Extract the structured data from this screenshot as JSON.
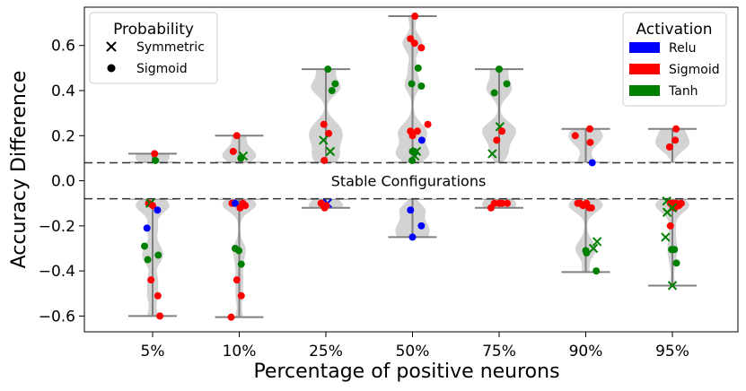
{
  "chart_data": {
    "type": "scatter",
    "title": "",
    "xlabel": "Percentage of positive neurons",
    "ylabel": "Accuracy Difference",
    "categories": [
      "5%",
      "10%",
      "25%",
      "50%",
      "75%",
      "90%",
      "95%"
    ],
    "ylim": [
      -0.67,
      0.77
    ],
    "yticks": [
      -0.6,
      -0.4,
      -0.2,
      0.0,
      0.2,
      0.4,
      0.6
    ],
    "ytick_labels": [
      "−0.6",
      "−0.4",
      "−0.2",
      "0.0",
      "0.2",
      "0.4",
      "0.6"
    ],
    "stable_band": {
      "lower": -0.08,
      "upper": 0.08,
      "label": "Stable Configurations"
    },
    "colors": {
      "Relu": "#0000ff",
      "Sigmoid": "#ff0000",
      "Tanh": "#008000",
      "whisker": "#808080",
      "violin": "#c8c8c8",
      "band_line": "#333333"
    },
    "legend_probability": {
      "title": "Probability",
      "entries": [
        {
          "marker": "x",
          "label": "Symmetric"
        },
        {
          "marker": "o",
          "label": "Sigmoid"
        }
      ]
    },
    "legend_activation": {
      "title": "Activation",
      "entries": [
        {
          "name": "Relu"
        },
        {
          "name": "Sigmoid"
        },
        {
          "name": "Tanh"
        }
      ]
    },
    "groups": [
      {
        "category": "5%",
        "pos_range": [
          0.08,
          0.12
        ],
        "neg_range": [
          -0.6,
          -0.08
        ],
        "points": [
          {
            "dx": 0.05,
            "y": 0.12,
            "act": "Sigmoid",
            "marker": "o"
          },
          {
            "dx": 0.07,
            "y": 0.09,
            "act": "Tanh",
            "marker": "o"
          },
          {
            "dx": -0.1,
            "y": -0.1,
            "act": "Sigmoid",
            "marker": "o"
          },
          {
            "dx": -0.06,
            "y": -0.1,
            "act": "Tanh",
            "marker": "x"
          },
          {
            "dx": 0.0,
            "y": -0.11,
            "act": "Sigmoid",
            "marker": "o"
          },
          {
            "dx": 0.12,
            "y": -0.13,
            "act": "Relu",
            "marker": "o"
          },
          {
            "dx": -0.14,
            "y": -0.21,
            "act": "Relu",
            "marker": "o"
          },
          {
            "dx": -0.2,
            "y": -0.29,
            "act": "Tanh",
            "marker": "o"
          },
          {
            "dx": -0.12,
            "y": -0.35,
            "act": "Tanh",
            "marker": "o"
          },
          {
            "dx": 0.14,
            "y": -0.33,
            "act": "Tanh",
            "marker": "o"
          },
          {
            "dx": -0.04,
            "y": -0.44,
            "act": "Sigmoid",
            "marker": "o"
          },
          {
            "dx": 0.13,
            "y": -0.51,
            "act": "Sigmoid",
            "marker": "o"
          },
          {
            "dx": 0.18,
            "y": -0.6,
            "act": "Sigmoid",
            "marker": "o"
          }
        ]
      },
      {
        "category": "10%",
        "pos_range": [
          0.08,
          0.2
        ],
        "neg_range": [
          -0.605,
          -0.08
        ],
        "points": [
          {
            "dx": -0.06,
            "y": 0.2,
            "act": "Sigmoid",
            "marker": "o"
          },
          {
            "dx": -0.15,
            "y": 0.13,
            "act": "Sigmoid",
            "marker": "o"
          },
          {
            "dx": 0.1,
            "y": 0.11,
            "act": "Tanh",
            "marker": "x"
          },
          {
            "dx": 0.04,
            "y": 0.1,
            "act": "Tanh",
            "marker": "o"
          },
          {
            "dx": -0.18,
            "y": -0.1,
            "act": "Sigmoid",
            "marker": "o"
          },
          {
            "dx": -0.12,
            "y": -0.1,
            "act": "Sigmoid",
            "marker": "o"
          },
          {
            "dx": -0.1,
            "y": -0.1,
            "act": "Relu",
            "marker": "o"
          },
          {
            "dx": 0.09,
            "y": -0.1,
            "act": "Sigmoid",
            "marker": "o"
          },
          {
            "dx": 0.15,
            "y": -0.11,
            "act": "Sigmoid",
            "marker": "o"
          },
          {
            "dx": 0.02,
            "y": -0.12,
            "act": "Sigmoid",
            "marker": "o"
          },
          {
            "dx": -0.1,
            "y": -0.3,
            "act": "Tanh",
            "marker": "o"
          },
          {
            "dx": -0.01,
            "y": -0.31,
            "act": "Tanh",
            "marker": "o"
          },
          {
            "dx": 0.05,
            "y": -0.37,
            "act": "Tanh",
            "marker": "o"
          },
          {
            "dx": -0.06,
            "y": -0.44,
            "act": "Sigmoid",
            "marker": "o"
          },
          {
            "dx": 0.05,
            "y": -0.51,
            "act": "Sigmoid",
            "marker": "o"
          },
          {
            "dx": -0.2,
            "y": -0.605,
            "act": "Sigmoid",
            "marker": "o"
          }
        ]
      },
      {
        "category": "25%",
        "pos_range": [
          0.08,
          0.495
        ],
        "neg_range": [
          -0.12,
          -0.08
        ],
        "points": [
          {
            "dx": 0.05,
            "y": 0.495,
            "act": "Tanh",
            "marker": "o"
          },
          {
            "dx": 0.23,
            "y": 0.43,
            "act": "Tanh",
            "marker": "o"
          },
          {
            "dx": 0.15,
            "y": 0.4,
            "act": "Tanh",
            "marker": "o"
          },
          {
            "dx": -0.05,
            "y": 0.25,
            "act": "Sigmoid",
            "marker": "o"
          },
          {
            "dx": 0.07,
            "y": 0.21,
            "act": "Sigmoid",
            "marker": "o"
          },
          {
            "dx": -0.06,
            "y": 0.18,
            "act": "Tanh",
            "marker": "x"
          },
          {
            "dx": 0.11,
            "y": 0.13,
            "act": "Tanh",
            "marker": "x"
          },
          {
            "dx": -0.04,
            "y": 0.09,
            "act": "Sigmoid",
            "marker": "o"
          },
          {
            "dx": 0.04,
            "y": -0.1,
            "act": "Relu",
            "marker": "x"
          },
          {
            "dx": -0.12,
            "y": -0.1,
            "act": "Sigmoid",
            "marker": "o"
          },
          {
            "dx": -0.06,
            "y": -0.11,
            "act": "Sigmoid",
            "marker": "o"
          },
          {
            "dx": 0.01,
            "y": -0.11,
            "act": "Sigmoid",
            "marker": "o"
          },
          {
            "dx": -0.03,
            "y": -0.12,
            "act": "Sigmoid",
            "marker": "o"
          }
        ]
      },
      {
        "category": "50%",
        "pos_range": [
          0.08,
          0.73
        ],
        "neg_range": [
          -0.25,
          -0.08
        ],
        "points": [
          {
            "dx": 0.06,
            "y": 0.73,
            "act": "Sigmoid",
            "marker": "o"
          },
          {
            "dx": -0.05,
            "y": 0.63,
            "act": "Sigmoid",
            "marker": "o"
          },
          {
            "dx": 0.05,
            "y": 0.61,
            "act": "Sigmoid",
            "marker": "o"
          },
          {
            "dx": 0.22,
            "y": 0.59,
            "act": "Sigmoid",
            "marker": "o"
          },
          {
            "dx": 0.14,
            "y": 0.5,
            "act": "Tanh",
            "marker": "o"
          },
          {
            "dx": -0.02,
            "y": 0.43,
            "act": "Tanh",
            "marker": "o"
          },
          {
            "dx": 0.22,
            "y": 0.42,
            "act": "Tanh",
            "marker": "o"
          },
          {
            "dx": 0.38,
            "y": 0.25,
            "act": "Sigmoid",
            "marker": "o"
          },
          {
            "dx": -0.05,
            "y": 0.22,
            "act": "Sigmoid",
            "marker": "o"
          },
          {
            "dx": 0.12,
            "y": 0.22,
            "act": "Sigmoid",
            "marker": "o"
          },
          {
            "dx": 0.0,
            "y": 0.2,
            "act": "Sigmoid",
            "marker": "o"
          },
          {
            "dx": 0.23,
            "y": 0.18,
            "act": "Relu",
            "marker": "o"
          },
          {
            "dx": 0.0,
            "y": 0.13,
            "act": "Tanh",
            "marker": "o"
          },
          {
            "dx": 0.04,
            "y": 0.13,
            "act": "Tanh",
            "marker": "o"
          },
          {
            "dx": 0.1,
            "y": 0.13,
            "act": "Tanh",
            "marker": "x"
          },
          {
            "dx": 0.06,
            "y": 0.11,
            "act": "Tanh",
            "marker": "x"
          },
          {
            "dx": -0.01,
            "y": 0.09,
            "act": "Tanh",
            "marker": "o"
          },
          {
            "dx": -0.05,
            "y": -0.13,
            "act": "Relu",
            "marker": "o"
          },
          {
            "dx": 0.22,
            "y": -0.2,
            "act": "Relu",
            "marker": "o"
          },
          {
            "dx": 0.0,
            "y": -0.25,
            "act": "Relu",
            "marker": "o"
          }
        ]
      },
      {
        "category": "75%",
        "pos_range": [
          0.08,
          0.495
        ],
        "neg_range": [
          -0.12,
          -0.08
        ],
        "points": [
          {
            "dx": 0.0,
            "y": 0.495,
            "act": "Tanh",
            "marker": "o"
          },
          {
            "dx": 0.19,
            "y": 0.43,
            "act": "Tanh",
            "marker": "o"
          },
          {
            "dx": -0.12,
            "y": 0.39,
            "act": "Tanh",
            "marker": "o"
          },
          {
            "dx": 0.02,
            "y": 0.24,
            "act": "Tanh",
            "marker": "x"
          },
          {
            "dx": 0.07,
            "y": 0.22,
            "act": "Sigmoid",
            "marker": "o"
          },
          {
            "dx": -0.06,
            "y": 0.18,
            "act": "Sigmoid",
            "marker": "o"
          },
          {
            "dx": -0.17,
            "y": 0.12,
            "act": "Tanh",
            "marker": "x"
          },
          {
            "dx": -0.12,
            "y": -0.1,
            "act": "Sigmoid",
            "marker": "o"
          },
          {
            "dx": 0.0,
            "y": -0.1,
            "act": "Sigmoid",
            "marker": "o"
          },
          {
            "dx": 0.07,
            "y": -0.1,
            "act": "Sigmoid",
            "marker": "o"
          },
          {
            "dx": 0.2,
            "y": -0.1,
            "act": "Sigmoid",
            "marker": "o"
          },
          {
            "dx": -0.2,
            "y": -0.12,
            "act": "Sigmoid",
            "marker": "o"
          }
        ]
      },
      {
        "category": "90%",
        "pos_range": [
          0.08,
          0.23
        ],
        "neg_range": [
          -0.405,
          -0.08
        ],
        "points": [
          {
            "dx": 0.1,
            "y": 0.23,
            "act": "Sigmoid",
            "marker": "o"
          },
          {
            "dx": -0.26,
            "y": 0.2,
            "act": "Sigmoid",
            "marker": "o"
          },
          {
            "dx": 0.11,
            "y": 0.17,
            "act": "Sigmoid",
            "marker": "o"
          },
          {
            "dx": 0.16,
            "y": 0.08,
            "act": "Relu",
            "marker": "o"
          },
          {
            "dx": -0.2,
            "y": -0.1,
            "act": "Sigmoid",
            "marker": "o"
          },
          {
            "dx": -0.14,
            "y": -0.1,
            "act": "Sigmoid",
            "marker": "o"
          },
          {
            "dx": -0.07,
            "y": -0.11,
            "act": "Sigmoid",
            "marker": "o"
          },
          {
            "dx": 0.02,
            "y": -0.1,
            "act": "Sigmoid",
            "marker": "o"
          },
          {
            "dx": 0.09,
            "y": -0.12,
            "act": "Sigmoid",
            "marker": "o"
          },
          {
            "dx": 0.14,
            "y": -0.12,
            "act": "Sigmoid",
            "marker": "o"
          },
          {
            "dx": 0.28,
            "y": -0.27,
            "act": "Tanh",
            "marker": "x"
          },
          {
            "dx": 0.19,
            "y": -0.3,
            "act": "Tanh",
            "marker": "x"
          },
          {
            "dx": 0.0,
            "y": -0.31,
            "act": "Tanh",
            "marker": "o"
          },
          {
            "dx": 0.02,
            "y": -0.32,
            "act": "Tanh",
            "marker": "o"
          },
          {
            "dx": 0.26,
            "y": -0.4,
            "act": "Tanh",
            "marker": "o"
          }
        ]
      },
      {
        "category": "95%",
        "pos_range": [
          0.08,
          0.23
        ],
        "neg_range": [
          -0.465,
          -0.08
        ],
        "points": [
          {
            "dx": 0.09,
            "y": 0.23,
            "act": "Sigmoid",
            "marker": "o"
          },
          {
            "dx": 0.07,
            "y": 0.18,
            "act": "Sigmoid",
            "marker": "o"
          },
          {
            "dx": -0.07,
            "y": 0.15,
            "act": "Sigmoid",
            "marker": "o"
          },
          {
            "dx": -0.14,
            "y": -0.09,
            "act": "Tanh",
            "marker": "x"
          },
          {
            "dx": -0.05,
            "y": -0.1,
            "act": "Sigmoid",
            "marker": "o"
          },
          {
            "dx": 0.03,
            "y": -0.1,
            "act": "Sigmoid",
            "marker": "o"
          },
          {
            "dx": 0.1,
            "y": -0.1,
            "act": "Sigmoid",
            "marker": "o"
          },
          {
            "dx": 0.22,
            "y": -0.1,
            "act": "Sigmoid",
            "marker": "o"
          },
          {
            "dx": 0.0,
            "y": -0.11,
            "act": "Sigmoid",
            "marker": "o"
          },
          {
            "dx": 0.16,
            "y": -0.11,
            "act": "Sigmoid",
            "marker": "o"
          },
          {
            "dx": 0.06,
            "y": -0.12,
            "act": "Sigmoid",
            "marker": "o"
          },
          {
            "dx": 0.0,
            "y": -0.12,
            "act": "Tanh",
            "marker": "x"
          },
          {
            "dx": -0.13,
            "y": -0.14,
            "act": "Tanh",
            "marker": "x"
          },
          {
            "dx": -0.05,
            "y": -0.2,
            "act": "Sigmoid",
            "marker": "o"
          },
          {
            "dx": -0.17,
            "y": -0.25,
            "act": "Tanh",
            "marker": "x"
          },
          {
            "dx": -0.02,
            "y": -0.305,
            "act": "Tanh",
            "marker": "o"
          },
          {
            "dx": 0.05,
            "y": -0.305,
            "act": "Tanh",
            "marker": "o"
          },
          {
            "dx": 0.1,
            "y": -0.365,
            "act": "Tanh",
            "marker": "o"
          },
          {
            "dx": 0.0,
            "y": -0.465,
            "act": "Tanh",
            "marker": "x"
          }
        ]
      }
    ]
  }
}
